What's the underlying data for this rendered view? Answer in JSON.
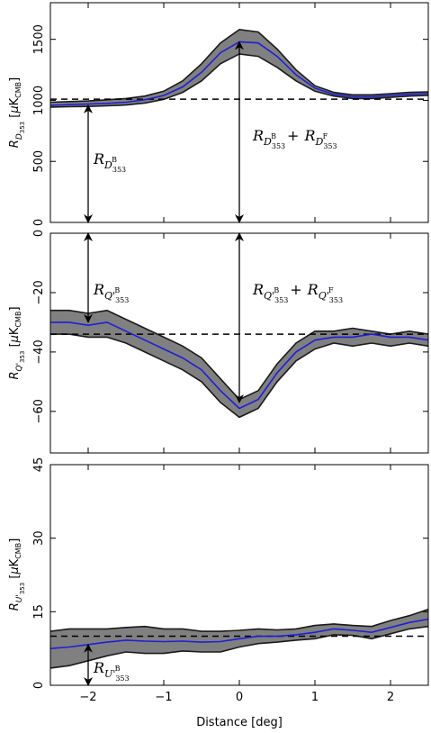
{
  "colors": {
    "band": "#808080",
    "band_edge": "#1a1a1a",
    "mean_line": "#1f1fd6",
    "reference": "#000000",
    "arrow": "#000000"
  },
  "xlabel": "Distance [deg]",
  "chart_data": [
    {
      "type": "area",
      "panel": "top",
      "ylabel": "R_{D_353} [μK_CMB]",
      "xlim": [
        -2.5,
        2.5
      ],
      "ylim": [
        0,
        1800
      ],
      "xticks": [
        -2,
        -1,
        0,
        1,
        2
      ],
      "yticks": [
        0,
        500,
        1000,
        1500
      ],
      "grid": false,
      "reference_level": 1010,
      "x": [
        -2.5,
        -2.25,
        -2.0,
        -1.75,
        -1.5,
        -1.25,
        -1.0,
        -0.75,
        -0.5,
        -0.25,
        0.0,
        0.25,
        0.5,
        0.75,
        1.0,
        1.25,
        1.5,
        1.75,
        2.0,
        2.25,
        2.5
      ],
      "series": [
        {
          "values": [
            960,
            965,
            970,
            975,
            985,
            1005,
            1040,
            1110,
            1230,
            1390,
            1480,
            1470,
            1360,
            1210,
            1100,
            1050,
            1030,
            1030,
            1040,
            1050,
            1055
          ]
        },
        {
          "values": [
            985,
            990,
            995,
            1005,
            1015,
            1035,
            1075,
            1160,
            1300,
            1470,
            1580,
            1560,
            1420,
            1250,
            1120,
            1065,
            1045,
            1045,
            1055,
            1065,
            1070
          ]
        },
        {
          "values": [
            945,
            948,
            950,
            955,
            962,
            978,
            1008,
            1065,
            1160,
            1300,
            1380,
            1360,
            1270,
            1160,
            1075,
            1035,
            1015,
            1015,
            1025,
            1035,
            1040
          ]
        }
      ],
      "annotations": [
        {
          "text": "R_{D^B_353}",
          "arrow_x": -2.0,
          "from": 960,
          "to": 0
        },
        {
          "text": "R_{D^B_353} + R_{D^F_353}",
          "arrow_x": 0.0,
          "from": 1480,
          "to": 0
        }
      ]
    },
    {
      "type": "area",
      "panel": "middle",
      "ylabel": "R_{Q'_353} [μK_CMB]",
      "xlim": [
        -2.5,
        2.5
      ],
      "ylim": [
        -74,
        0
      ],
      "xticks": [
        -2,
        -1,
        0,
        1,
        2
      ],
      "yticks": [
        -60,
        -40,
        -20,
        0
      ],
      "grid": false,
      "reference_level": -34,
      "x": [
        -2.5,
        -2.25,
        -2.0,
        -1.75,
        -1.5,
        -1.25,
        -1.0,
        -0.75,
        -0.5,
        -0.25,
        0.0,
        0.25,
        0.5,
        0.75,
        1.0,
        1.25,
        1.5,
        1.75,
        2.0,
        2.25,
        2.5
      ],
      "series": [
        {
          "values": [
            -30,
            -30,
            -31,
            -30,
            -33,
            -36,
            -39,
            -42,
            -46,
            -53,
            -59,
            -56,
            -47,
            -40,
            -36,
            -35,
            -35,
            -34,
            -35,
            -35,
            -36
          ]
        },
        {
          "values": [
            -26,
            -26,
            -27,
            -26,
            -29,
            -32,
            -35,
            -38,
            -42,
            -49,
            -56,
            -53,
            -44,
            -37,
            -33,
            -33,
            -32,
            -33,
            -34,
            -33,
            -34
          ]
        },
        {
          "values": [
            -34,
            -34,
            -35,
            -35,
            -37,
            -40,
            -43,
            -46,
            -50,
            -57,
            -62,
            -59,
            -50,
            -43,
            -39,
            -37,
            -38,
            -37,
            -38,
            -37,
            -38
          ]
        }
      ],
      "annotations": [
        {
          "text": "R_{Q'^B_353}",
          "arrow_x": -2.0,
          "from": 0,
          "to": -30
        },
        {
          "text": "R_{Q'^B_353} + R_{Q'^F_353}",
          "arrow_x": 0.0,
          "from": 0,
          "to": -57
        }
      ]
    },
    {
      "type": "area",
      "panel": "bottom",
      "ylabel": "R_{U'_353} [μK_CMB]",
      "xlim": [
        -2.5,
        2.5
      ],
      "ylim": [
        0,
        45
      ],
      "xticks": [
        -2,
        -1,
        0,
        1,
        2
      ],
      "yticks": [
        0,
        15,
        30,
        45
      ],
      "grid": false,
      "reference_level": 10,
      "x": [
        -2.5,
        -2.25,
        -2.0,
        -1.75,
        -1.5,
        -1.25,
        -1.0,
        -0.75,
        -0.5,
        -0.25,
        0.0,
        0.25,
        0.5,
        0.75,
        1.0,
        1.25,
        1.5,
        1.75,
        2.0,
        2.25,
        2.5
      ],
      "series": [
        {
          "values": [
            7.5,
            7.8,
            8.3,
            8.8,
            9.2,
            9.0,
            8.9,
            9.0,
            8.8,
            8.9,
            9.5,
            10.0,
            10.0,
            10.3,
            10.8,
            11.5,
            11.2,
            10.8,
            11.8,
            12.8,
            13.5
          ]
        },
        {
          "values": [
            11.0,
            11.5,
            11.5,
            11.5,
            11.8,
            12.0,
            11.5,
            11.5,
            11.0,
            11.0,
            11.2,
            11.5,
            11.3,
            11.5,
            12.2,
            12.5,
            12.2,
            12.0,
            13.2,
            14.2,
            15.5
          ]
        },
        {
          "values": [
            3.5,
            4.0,
            5.0,
            6.0,
            6.8,
            6.5,
            6.5,
            7.0,
            6.8,
            6.8,
            7.8,
            8.5,
            8.8,
            9.2,
            9.5,
            10.3,
            10.2,
            9.5,
            10.5,
            11.5,
            12.0
          ]
        }
      ],
      "annotations": [
        {
          "text": "R_{U'^B_353}",
          "arrow_x": -2.0,
          "from": 8.3,
          "to": 0
        }
      ]
    }
  ]
}
